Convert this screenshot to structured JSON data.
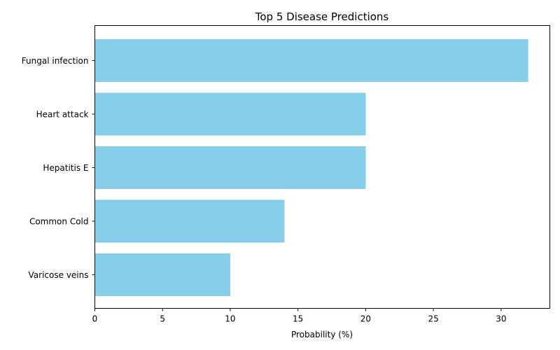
{
  "chart_data": {
    "type": "bar",
    "orientation": "horizontal",
    "title": "Top 5 Disease Predictions",
    "xlabel": "Probability (%)",
    "ylabel": "",
    "categories": [
      "Fungal infection",
      "Heart attack",
      "Hepatitis E",
      "Common Cold",
      "Varicose veins"
    ],
    "values": [
      32,
      20,
      20,
      14,
      10
    ],
    "xlim": [
      0,
      33.6
    ],
    "xticks": [
      0,
      5,
      10,
      15,
      20,
      25,
      30
    ],
    "bar_color": "#87ceeb",
    "grid": false,
    "legend": "none"
  }
}
